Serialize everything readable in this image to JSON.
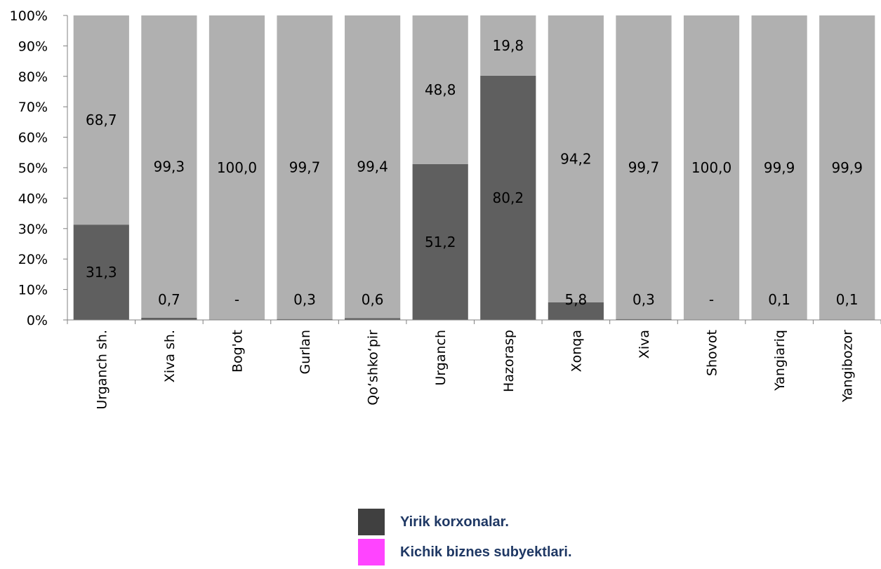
{
  "chart_data": {
    "type": "bar",
    "stacked": true,
    "categories": [
      "Urganch sh.",
      "Xiva sh.",
      "Bog'ot",
      "Gurlan",
      "Qo‘shko‘pir",
      "Urganch",
      "Hazorasp",
      "Xonqa",
      "Xiva",
      "Shovot",
      "Yangiariq",
      "Yangibozor"
    ],
    "series": [
      {
        "name": "Yirik korxonalar.",
        "color": "#5f5f5f",
        "values": [
          31.3,
          0.7,
          0,
          0.3,
          0.6,
          51.2,
          80.2,
          5.8,
          0.3,
          0,
          0.1,
          0.1
        ],
        "labels": [
          "31,3",
          "0,7",
          "-",
          "0,3",
          "0,6",
          "51,2",
          "80,2",
          "5,8",
          "0,3",
          "-",
          "0,1",
          "0,1"
        ]
      },
      {
        "name": "Kichik biznes subyektlari.",
        "color": "#b0b0b0",
        "values": [
          68.7,
          99.3,
          100.0,
          99.7,
          99.4,
          48.8,
          19.8,
          94.2,
          99.7,
          100.0,
          99.9,
          99.9
        ],
        "labels": [
          "68,7",
          "99,3",
          "100,0",
          "99,7",
          "99,4",
          "48,8",
          "19,8",
          "94,2",
          "99,7",
          "100,0",
          "99,9",
          "99,9"
        ]
      }
    ],
    "y_ticks": [
      "0%",
      "10%",
      "20%",
      "30%",
      "40%",
      "50%",
      "60%",
      "70%",
      "80%",
      "90%",
      "100%"
    ],
    "ylim": [
      0,
      100
    ],
    "xlabel": "",
    "ylabel": "",
    "legend_position": "bottom-center",
    "legend": [
      {
        "label": "Yirik korxonalar.",
        "color": "#404040"
      },
      {
        "label": "Kichik biznes subyektlari.",
        "color": "#ff44ff"
      }
    ]
  }
}
